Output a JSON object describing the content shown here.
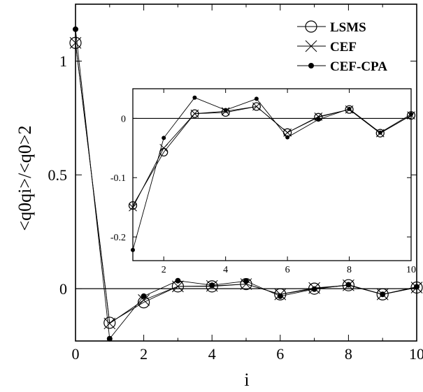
{
  "chart_data": [
    {
      "type": "line",
      "xlabel": "i",
      "ylabel": "<q0qi>/<q0>2",
      "xlim": [
        0,
        10
      ],
      "ylim": [
        -0.23,
        1.25
      ],
      "xticks": [
        0,
        2,
        4,
        6,
        8,
        10
      ],
      "xtick_labels": [
        "0",
        "2",
        "4",
        "6",
        "8",
        "10"
      ],
      "yticks": [
        0,
        0.5,
        1
      ],
      "ytick_labels": [
        "0",
        "0.5",
        "1"
      ],
      "zero_line": true,
      "grid": false,
      "legend_position": "top-right",
      "series": [
        {
          "name": "LSMS",
          "marker": "open-circle",
          "x": [
            0,
            1,
            2,
            3,
            4,
            5,
            6,
            7,
            8,
            9,
            10
          ],
          "y": [
            1.08,
            -0.15,
            -0.06,
            0.01,
            0.01,
            0.02,
            -0.025,
            0.0,
            0.015,
            -0.025,
            0.005
          ]
        },
        {
          "name": "CEF",
          "marker": "cross",
          "x": [
            0,
            1,
            2,
            3,
            4,
            5,
            6,
            7,
            8,
            9,
            10
          ],
          "y": [
            1.08,
            -0.153,
            -0.05,
            0.01,
            0.012,
            0.02,
            -0.025,
            0.003,
            0.015,
            -0.025,
            0.005
          ]
        },
        {
          "name": "CEF-CPA",
          "marker": "filled-dot",
          "x": [
            0,
            1,
            2,
            3,
            4,
            5,
            6,
            7,
            8,
            9,
            10
          ],
          "y": [
            1.14,
            -0.22,
            -0.033,
            0.035,
            0.015,
            0.033,
            -0.033,
            -0.002,
            0.017,
            -0.025,
            0.008
          ]
        }
      ]
    },
    {
      "type": "line",
      "inset": true,
      "xlim": [
        1,
        10
      ],
      "ylim": [
        -0.24,
        0.05
      ],
      "xticks": [
        2,
        4,
        6,
        8,
        10
      ],
      "xtick_labels": [
        "2",
        "4",
        "6",
        "8",
        "10"
      ],
      "yticks": [
        -0.2,
        -0.1,
        0
      ],
      "ytick_labels": [
        "-0.2",
        "-0.1",
        "0"
      ],
      "zero_line": true,
      "grid": false,
      "series": [
        {
          "name": "LSMS",
          "marker": "open-circle",
          "x": [
            1,
            2,
            3,
            4,
            5,
            6,
            7,
            8,
            9,
            10
          ],
          "y": [
            -0.147,
            -0.057,
            0.008,
            0.01,
            0.02,
            -0.024,
            0.002,
            0.015,
            -0.025,
            0.005
          ]
        },
        {
          "name": "CEF",
          "marker": "cross",
          "x": [
            1,
            2,
            3,
            4,
            5,
            6,
            7,
            8,
            9,
            10
          ],
          "y": [
            -0.15,
            -0.05,
            0.008,
            0.012,
            0.02,
            -0.024,
            0.003,
            0.015,
            -0.025,
            0.005
          ]
        },
        {
          "name": "CEF-CPA",
          "marker": "filled-dot",
          "x": [
            1,
            2,
            3,
            4,
            5,
            6,
            7,
            8,
            9,
            10
          ],
          "y": [
            -0.222,
            -0.033,
            0.035,
            0.014,
            0.033,
            -0.032,
            -0.002,
            0.016,
            -0.024,
            0.007
          ]
        }
      ]
    }
  ]
}
